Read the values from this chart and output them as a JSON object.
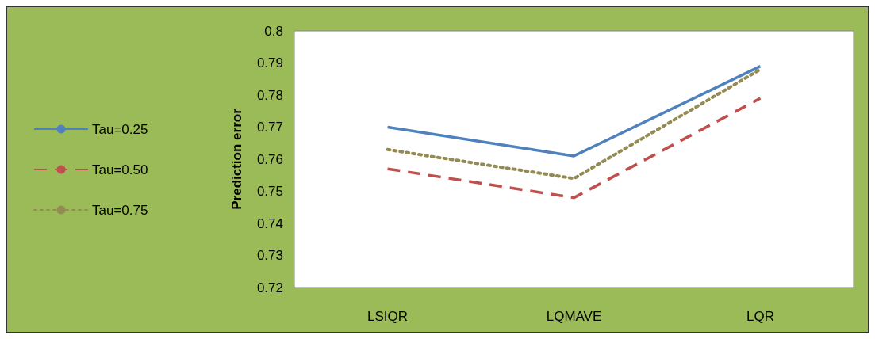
{
  "chart_data": {
    "type": "line",
    "ylabel": "Prediction error",
    "categories": [
      "LSIQR",
      "LQMAVE",
      "LQR"
    ],
    "series": [
      {
        "name": "Tau=0.25",
        "color": "#4f81bd",
        "line_style": "solid",
        "values": [
          0.77,
          0.761,
          0.789
        ]
      },
      {
        "name": "Tau=0.50",
        "color": "#c0504d",
        "line_style": "dashed",
        "values": [
          0.757,
          0.748,
          0.779
        ]
      },
      {
        "name": "Tau=0.75",
        "color": "#948a54",
        "line_style": "dotted",
        "values": [
          0.763,
          0.754,
          0.788
        ]
      }
    ],
    "ylim": [
      0.72,
      0.8
    ],
    "yticks": [
      0.72,
      0.73,
      0.74,
      0.75,
      0.76,
      0.77,
      0.78,
      0.79,
      0.8
    ],
    "grid": false,
    "legend": "left",
    "marker": "none"
  }
}
